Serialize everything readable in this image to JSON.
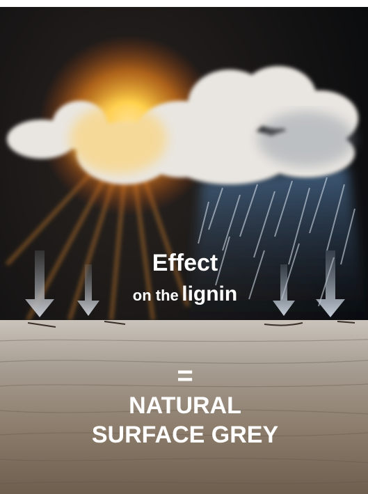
{
  "caption": {
    "line1": "Effect",
    "line2_prefix": "on the",
    "line2_emphasis": "lignin"
  },
  "result": {
    "symbol": "=",
    "lines": [
      "NATURAL",
      "SURFACE GREY"
    ]
  }
}
